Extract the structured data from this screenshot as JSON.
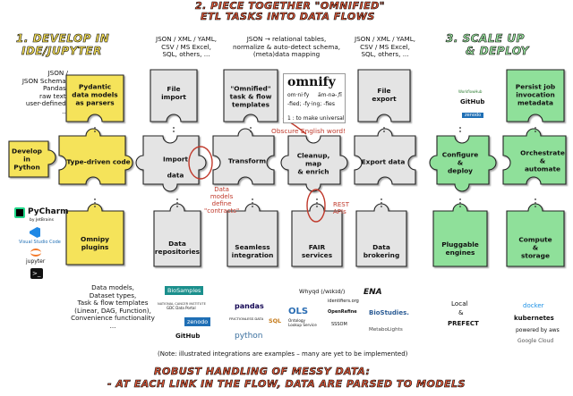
{
  "headers": {
    "main_line1": "2. PIECE TOGETHER \"OMNIFIED\"",
    "main_line2": "ETL TASKS INTO DATA FLOWS",
    "left_line1": "1. DEVELOP IN",
    "left_line2": "IDE/JUPYTER",
    "right_line1": "3. SCALE UP",
    "right_line2": "& DEPLOY",
    "bottom_line1": "ROBUST HANDLING OF MESSY DATA:",
    "bottom_line2": "- AT EACH LINK IN THE FLOW, DATA ARE PARSED TO MODELS"
  },
  "annotations": {
    "top_col_file_import": [
      "JSON / XML / YAML,",
      "CSV / MS Excel,",
      "SQL, others, ..."
    ],
    "top_col_omnified": [
      "JSON → relational tables,",
      "normalize & auto-detect schema,",
      "(meta)data mapping"
    ],
    "top_col_file_export": [
      "JSON / XML / YAML,",
      "CSV / MS Excel,",
      "SQL, others, ..."
    ],
    "left_inputs": [
      "JSON /",
      "JSON Schema,",
      "Pandas,",
      "raw text,",
      "user-defined,",
      "..."
    ],
    "bottom_left": [
      "Data models,",
      "Dataset types,",
      "Task & flow templates",
      "(Linear, DAG, Function),",
      "Convenience functionality",
      "..."
    ],
    "data_models_define": [
      "Data",
      "models",
      "define",
      "\"contracts\""
    ],
    "rest_apis": [
      "REST",
      "APIs"
    ],
    "obscure_word": "Obscure English word!",
    "footnote": "(Note: illustrated integrations are examples – many are yet to be implemented)",
    "local": "Local",
    "and": "&"
  },
  "omnify_card": {
    "title": "omnify",
    "pron1": "om·ni·fy",
    "pron2": "äm-nə-ˌfī",
    "forms": "-fied; -fy·ing; -fies",
    "def": "1 : to make universal"
  },
  "pieces": {
    "develop": "Develop\nin\nPython",
    "type_driven": "Type-driven code",
    "pydantic": "Pydantic\ndata models\nas parsers",
    "omnipy_plugins": "Omnipy\nplugins",
    "file_import": "File\nimport",
    "import_data": "Import\n\ndata",
    "data_repos": "Data\nrepositories",
    "omnified_templates": "\"Omnified\"\ntask & flow\ntemplates",
    "transform": "Transform",
    "seamless": "Seamless\nintegration",
    "cleanup": "Cleanup,\nmap\n& enrich",
    "fair": "FAIR\nservices",
    "file_export": "File\nexport",
    "export_data": "Export data",
    "data_brokering": "Data\nbrokering",
    "configure": "Configure\n&\ndeploy",
    "pluggable": "Pluggable\nengines",
    "persist": "Persist job\ninvocation\nmetadata",
    "orchestrate": "Orchestrate\n&\nautomate",
    "compute": "Compute\n&\nstorage"
  },
  "logos": {
    "ide": [
      "PyCharm",
      "by JetBrains",
      "Visual Studio Code",
      "jupyter"
    ],
    "repos": [
      "BioSamples",
      "NATIONAL CANCER INSTITUTE",
      "GDC Data Portal",
      "zenodo",
      "GitHub"
    ],
    "integration": [
      "pandas",
      "SQL",
      "FRICTIONLESS DATA",
      "python"
    ],
    "fair": [
      "Whyqd (/wɪkɪd/)",
      "identifiers.org",
      "OpenRefine",
      "OLS",
      "Ontology Lookup Service",
      "SSSOM",
      "BioStudies.",
      "MetaboLights",
      "ENA"
    ],
    "deploy_top": [
      "WorkflowHub",
      "GitHub",
      "zenodo"
    ],
    "prefect": "PREFECT",
    "compute": [
      "docker",
      "kubernetes",
      "powered by aws",
      "Google Cloud"
    ]
  },
  "colors": {
    "yellow_piece": "#f5e35a",
    "grey_piece": "#e4e4e4",
    "green_piece": "#8fe09a",
    "accent_red": "#c0392b"
  }
}
